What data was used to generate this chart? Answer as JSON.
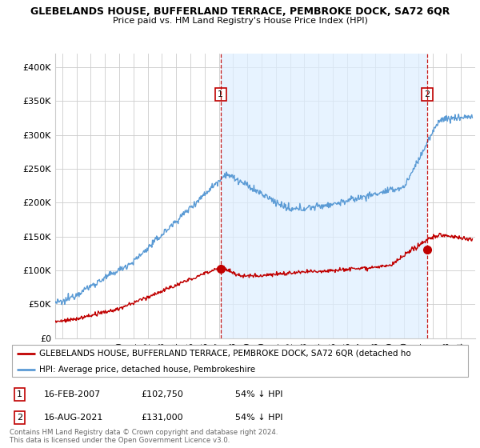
{
  "title": "GLEBELANDS HOUSE, BUFFERLAND TERRACE, PEMBROKE DOCK, SA72 6QR",
  "subtitle": "Price paid vs. HM Land Registry's House Price Index (HPI)",
  "ylabel_ticks": [
    "£0",
    "£50K",
    "£100K",
    "£150K",
    "£200K",
    "£250K",
    "£300K",
    "£350K",
    "£400K"
  ],
  "ytick_vals": [
    0,
    50000,
    100000,
    150000,
    200000,
    250000,
    300000,
    350000,
    400000
  ],
  "ylim": [
    0,
    420000
  ],
  "xlim_start": 1995.5,
  "xlim_end": 2025.0,
  "hpi_color": "#5b9bd5",
  "price_color": "#c00000",
  "dashed_color": "#c00000",
  "shade_color": "#ddeeff",
  "marker1_date": 2007.12,
  "marker1_label": "1",
  "marker1_price": 102750,
  "marker2_date": 2021.62,
  "marker2_label": "2",
  "marker2_price": 131000,
  "legend_line1": "GLEBELANDS HOUSE, BUFFERLAND TERRACE, PEMBROKE DOCK, SA72 6QR (detached ho",
  "legend_line2": "HPI: Average price, detached house, Pembrokeshire",
  "table_row1": [
    "1",
    "16-FEB-2007",
    "£102,750",
    "54% ↓ HPI"
  ],
  "table_row2": [
    "2",
    "16-AUG-2021",
    "£131,000",
    "54% ↓ HPI"
  ],
  "footnote": "Contains HM Land Registry data © Crown copyright and database right 2024.\nThis data is licensed under the Open Government Licence v3.0.",
  "bg_color": "#ffffff",
  "grid_color": "#cccccc",
  "xtick_years": [
    1996,
    1997,
    1998,
    1999,
    2000,
    2001,
    2002,
    2003,
    2004,
    2005,
    2006,
    2007,
    2008,
    2009,
    2010,
    2011,
    2012,
    2013,
    2014,
    2015,
    2016,
    2017,
    2018,
    2019,
    2020,
    2021,
    2022,
    2023,
    2024
  ]
}
